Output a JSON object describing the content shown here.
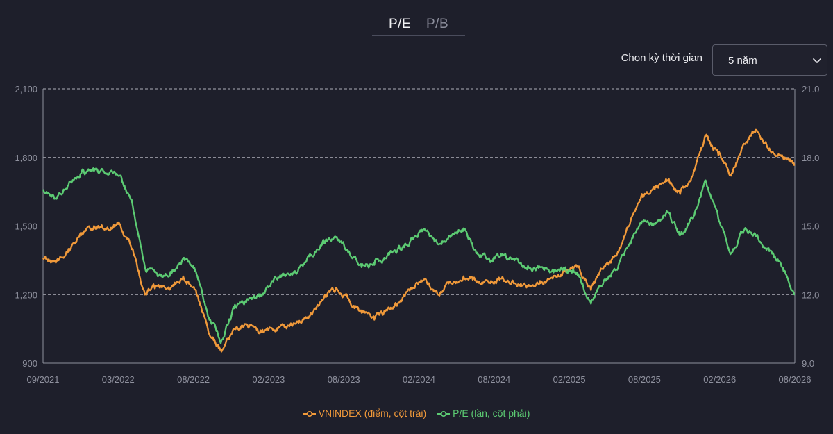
{
  "tabs": [
    {
      "label": "P/E",
      "active": true
    },
    {
      "label": "P/B",
      "active": false
    }
  ],
  "period_selector": {
    "label": "Chọn kỳ thời gian",
    "selected": "5 năm"
  },
  "colors": {
    "vnindex": "#f0993a",
    "pe": "#5ccb73",
    "background": "#1e1f2b"
  },
  "chart_data": {
    "type": "line",
    "x_tick_labels": [
      "09/2021",
      "03/2022",
      "08/2022",
      "02/2023",
      "08/2023",
      "02/2024",
      "08/2024",
      "02/2025",
      "08/2025",
      "02/2026",
      "08/2026"
    ],
    "x_range": [
      "2021-09",
      "2026-08"
    ],
    "y_left": {
      "ticks": [
        "900",
        "1,200",
        "1,500",
        "1,800",
        "2,100"
      ],
      "range": [
        900,
        2100
      ]
    },
    "y_right": {
      "ticks": [
        "9.0",
        "12.0",
        "15.0",
        "18.0",
        "21.0"
      ],
      "range": [
        9,
        21
      ]
    },
    "grid": "horizontal dashed",
    "legend_position": "bottom-center",
    "series": [
      {
        "name": "VNINDEX (điểm, cột trái)",
        "axis": "left",
        "points": [
          [
            "2021-09",
            1360
          ],
          [
            "2021-10",
            1340
          ],
          [
            "2021-11",
            1400
          ],
          [
            "2021-12",
            1460
          ],
          [
            "2022-01",
            1500
          ],
          [
            "2022-02",
            1490
          ],
          [
            "2022-03",
            1510
          ],
          [
            "2022-04",
            1400
          ],
          [
            "2022-05",
            1200
          ],
          [
            "2022-06",
            1240
          ],
          [
            "2022-07",
            1230
          ],
          [
            "2022-08",
            1280
          ],
          [
            "2022-09",
            1220
          ],
          [
            "2022-10",
            1030
          ],
          [
            "2022-11",
            950
          ],
          [
            "2022-12",
            1050
          ],
          [
            "2023-01",
            1070
          ],
          [
            "2023-02",
            1030
          ],
          [
            "2023-03",
            1050
          ],
          [
            "2023-04",
            1060
          ],
          [
            "2023-05",
            1080
          ],
          [
            "2023-06",
            1120
          ],
          [
            "2023-07",
            1180
          ],
          [
            "2023-08",
            1230
          ],
          [
            "2023-09",
            1180
          ],
          [
            "2023-10",
            1120
          ],
          [
            "2023-11",
            1090
          ],
          [
            "2023-12",
            1130
          ],
          [
            "2024-01",
            1170
          ],
          [
            "2024-02",
            1230
          ],
          [
            "2024-03",
            1270
          ],
          [
            "2024-04",
            1200
          ],
          [
            "2024-05",
            1250
          ],
          [
            "2024-06",
            1280
          ],
          [
            "2024-07",
            1260
          ],
          [
            "2024-08",
            1250
          ],
          [
            "2024-09",
            1270
          ],
          [
            "2024-10",
            1250
          ],
          [
            "2024-11",
            1240
          ],
          [
            "2024-12",
            1260
          ],
          [
            "2025-01",
            1270
          ],
          [
            "2025-02",
            1300
          ],
          [
            "2025-03",
            1320
          ],
          [
            "2025-04",
            1220
          ],
          [
            "2025-05",
            1320
          ],
          [
            "2025-06",
            1370
          ],
          [
            "2025-07",
            1500
          ],
          [
            "2025-08",
            1640
          ],
          [
            "2025-09",
            1660
          ],
          [
            "2025-10",
            1700
          ],
          [
            "2025-11",
            1640
          ],
          [
            "2025-12",
            1720
          ],
          [
            "2026-01",
            1890
          ],
          [
            "2026-02",
            1810
          ],
          [
            "2026-03",
            1720
          ],
          [
            "2026-04",
            1860
          ],
          [
            "2026-05",
            1920
          ],
          [
            "2026-06",
            1840
          ],
          [
            "2026-07",
            1810
          ],
          [
            "2026-08",
            1770
          ]
        ]
      },
      {
        "name": "P/E (lần, cột phải)",
        "axis": "right",
        "points": [
          [
            "2021-09",
            16.6
          ],
          [
            "2021-10",
            16.2
          ],
          [
            "2021-11",
            16.8
          ],
          [
            "2021-12",
            17.3
          ],
          [
            "2022-01",
            17.4
          ],
          [
            "2022-02",
            17.3
          ],
          [
            "2022-03",
            17.2
          ],
          [
            "2022-04",
            16.0
          ],
          [
            "2022-05",
            13.2
          ],
          [
            "2022-06",
            12.8
          ],
          [
            "2022-07",
            13.0
          ],
          [
            "2022-08",
            13.6
          ],
          [
            "2022-09",
            13.0
          ],
          [
            "2022-10",
            11.0
          ],
          [
            "2022-11",
            10.0
          ],
          [
            "2022-12",
            11.4
          ],
          [
            "2023-01",
            11.8
          ],
          [
            "2023-02",
            11.9
          ],
          [
            "2023-03",
            12.6
          ],
          [
            "2023-04",
            12.8
          ],
          [
            "2023-05",
            13.0
          ],
          [
            "2023-06",
            13.7
          ],
          [
            "2023-07",
            14.4
          ],
          [
            "2023-08",
            14.5
          ],
          [
            "2023-09",
            13.9
          ],
          [
            "2023-10",
            13.2
          ],
          [
            "2023-11",
            13.3
          ],
          [
            "2023-12",
            13.7
          ],
          [
            "2024-01",
            14.0
          ],
          [
            "2024-02",
            14.5
          ],
          [
            "2024-03",
            14.8
          ],
          [
            "2024-04",
            14.2
          ],
          [
            "2024-05",
            14.6
          ],
          [
            "2024-06",
            14.9
          ],
          [
            "2024-07",
            13.8
          ],
          [
            "2024-08",
            13.6
          ],
          [
            "2024-09",
            13.7
          ],
          [
            "2024-10",
            13.5
          ],
          [
            "2024-11",
            13.1
          ],
          [
            "2024-12",
            13.2
          ],
          [
            "2025-01",
            13.1
          ],
          [
            "2025-02",
            13.2
          ],
          [
            "2025-03",
            12.9
          ],
          [
            "2025-04",
            11.6
          ],
          [
            "2025-05",
            12.6
          ],
          [
            "2025-06",
            13.1
          ],
          [
            "2025-07",
            14.2
          ],
          [
            "2025-08",
            15.2
          ],
          [
            "2025-09",
            15.1
          ],
          [
            "2025-10",
            15.6
          ],
          [
            "2025-11",
            14.6
          ],
          [
            "2025-12",
            15.3
          ],
          [
            "2026-01",
            17.0
          ],
          [
            "2026-02",
            15.3
          ],
          [
            "2026-03",
            13.8
          ],
          [
            "2026-04",
            14.8
          ],
          [
            "2026-05",
            14.6
          ],
          [
            "2026-06",
            13.9
          ],
          [
            "2026-07",
            13.2
          ],
          [
            "2026-08",
            12.0
          ]
        ]
      }
    ]
  }
}
